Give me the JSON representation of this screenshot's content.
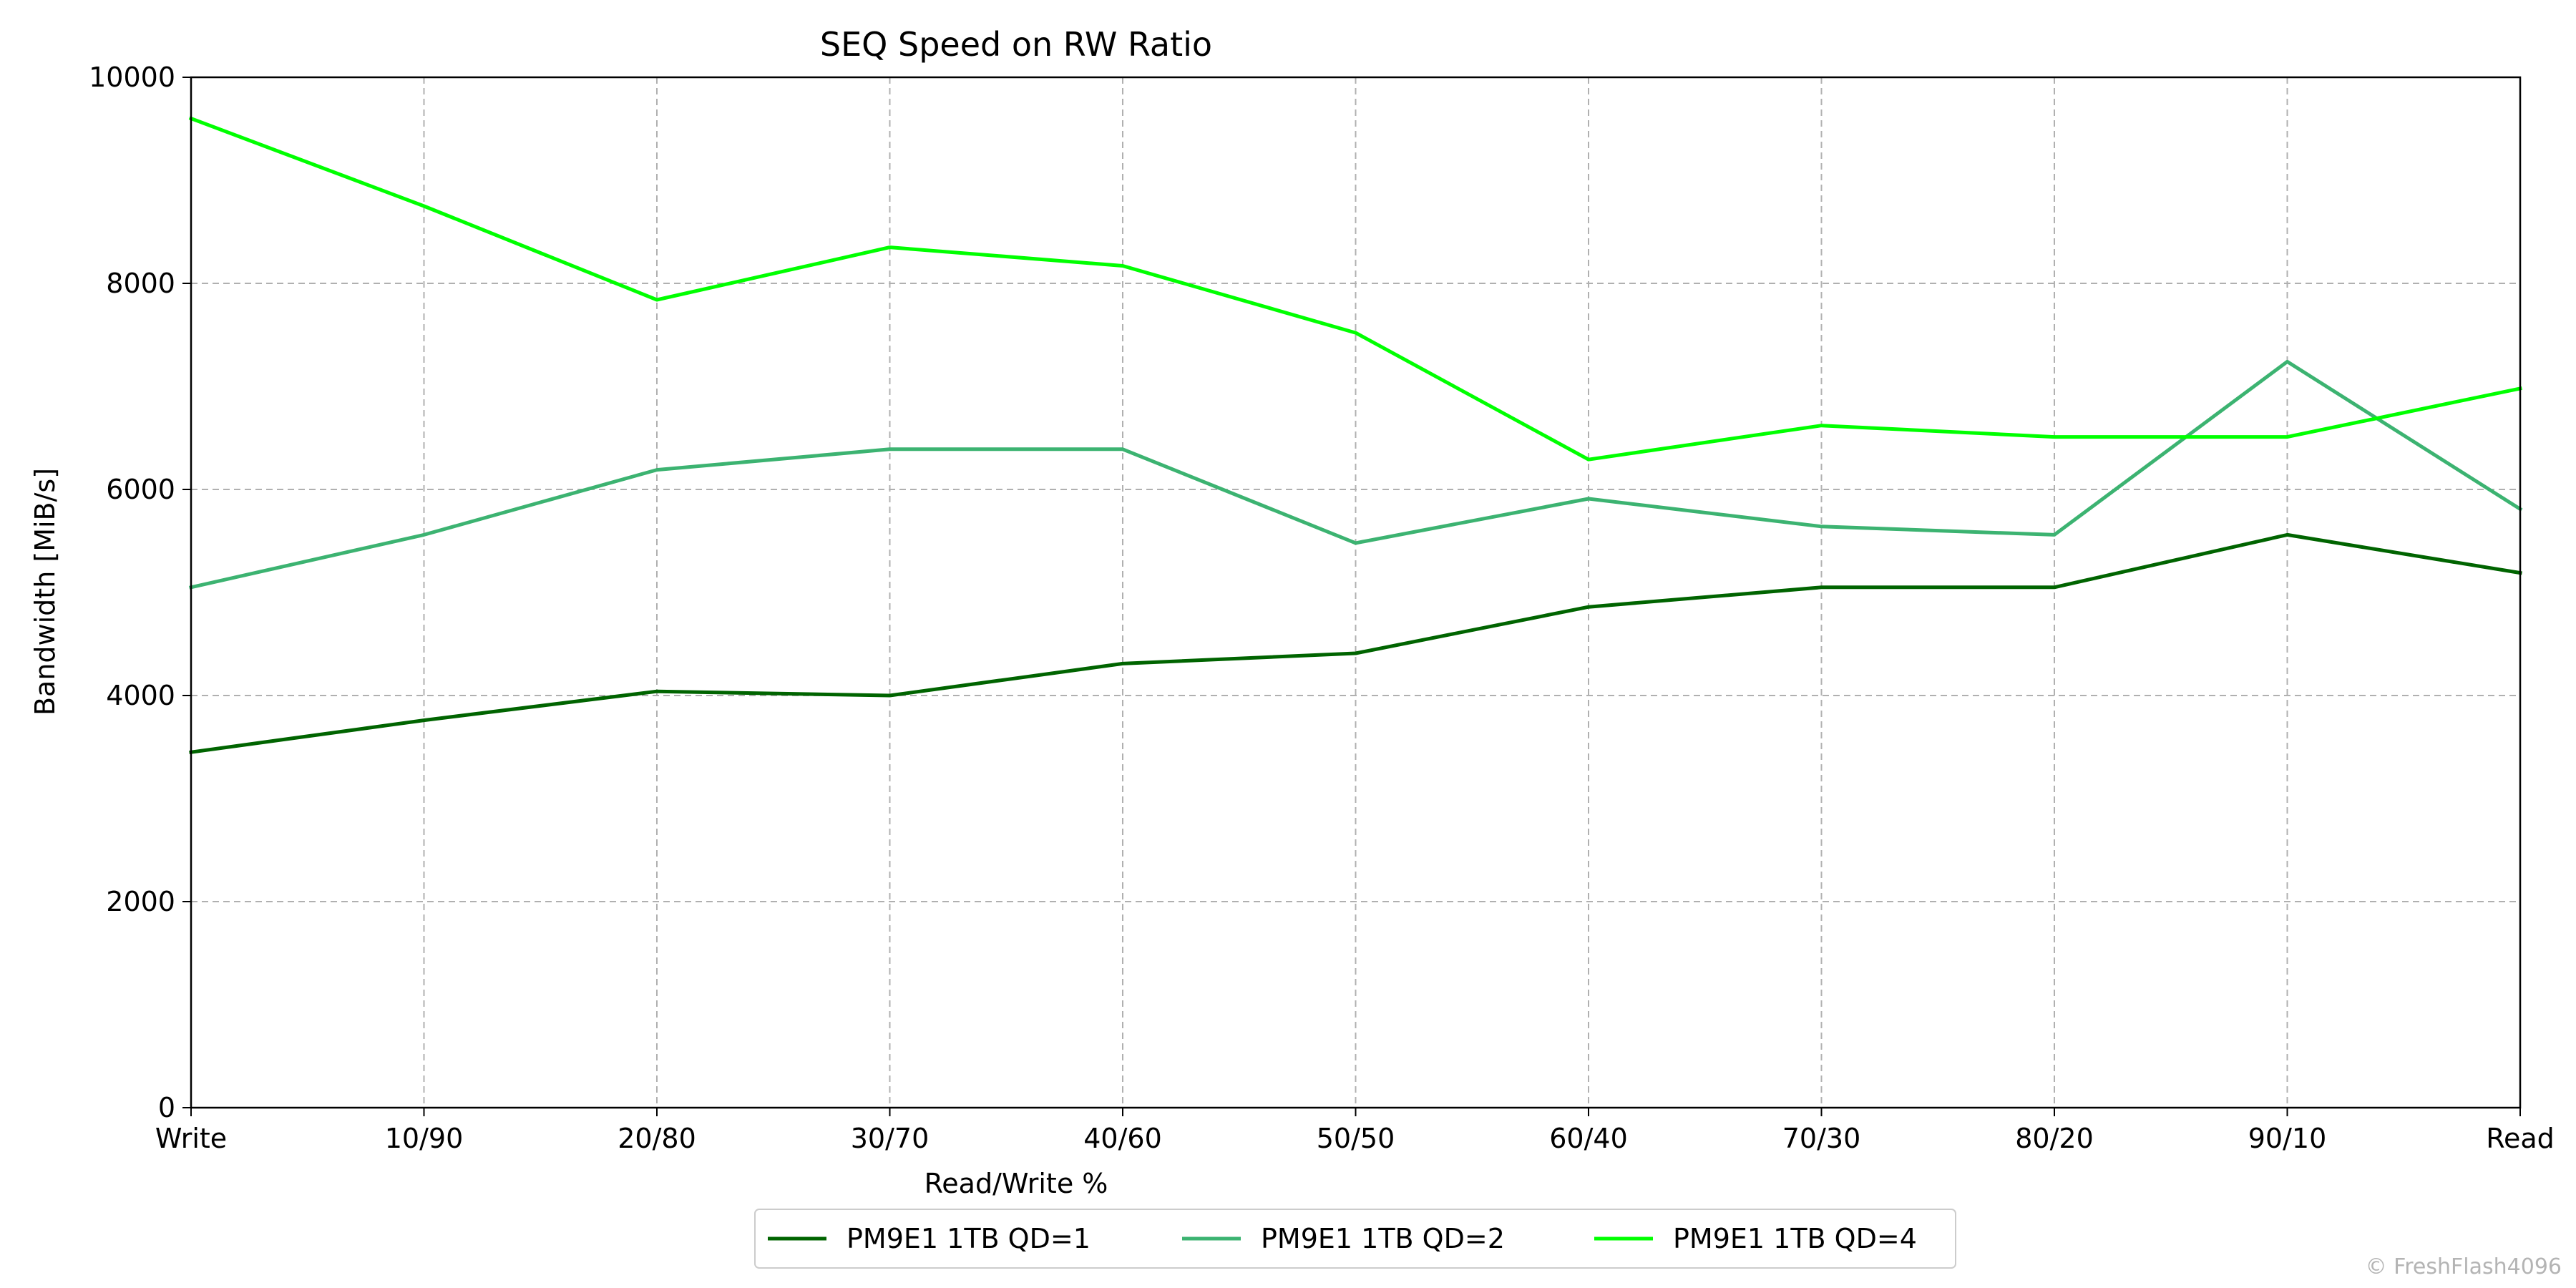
{
  "chart_data": {
    "type": "line",
    "title": "SEQ Speed on RW Ratio",
    "xlabel": "Read/Write %",
    "ylabel": "Bandwidth [MiB/s]",
    "categories": [
      "Write",
      "10/90",
      "20/80",
      "30/70",
      "40/60",
      "50/50",
      "60/40",
      "70/30",
      "80/20",
      "90/10",
      "Read"
    ],
    "ylim": [
      0,
      10000
    ],
    "yticks": [
      0,
      2000,
      4000,
      6000,
      8000,
      10000
    ],
    "grid": true,
    "legend_position": "bottom-center",
    "series": [
      {
        "name": "PM9E1 1TB QD=1",
        "color": "#006400",
        "values": [
          3450,
          3760,
          4040,
          4000,
          4310,
          4410,
          4860,
          5050,
          5050,
          5560,
          5190
        ]
      },
      {
        "name": "PM9E1 1TB QD=2",
        "color": "#3cb371",
        "values": [
          5050,
          5560,
          6190,
          6390,
          6390,
          5480,
          5910,
          5640,
          5560,
          7240,
          5810
        ]
      },
      {
        "name": "PM9E1 1TB QD=4",
        "color": "#00ff00",
        "values": [
          9600,
          8750,
          7840,
          8350,
          8170,
          7520,
          6290,
          6620,
          6510,
          6510,
          6980
        ]
      }
    ]
  },
  "watermark": "© FreshFlash4096"
}
